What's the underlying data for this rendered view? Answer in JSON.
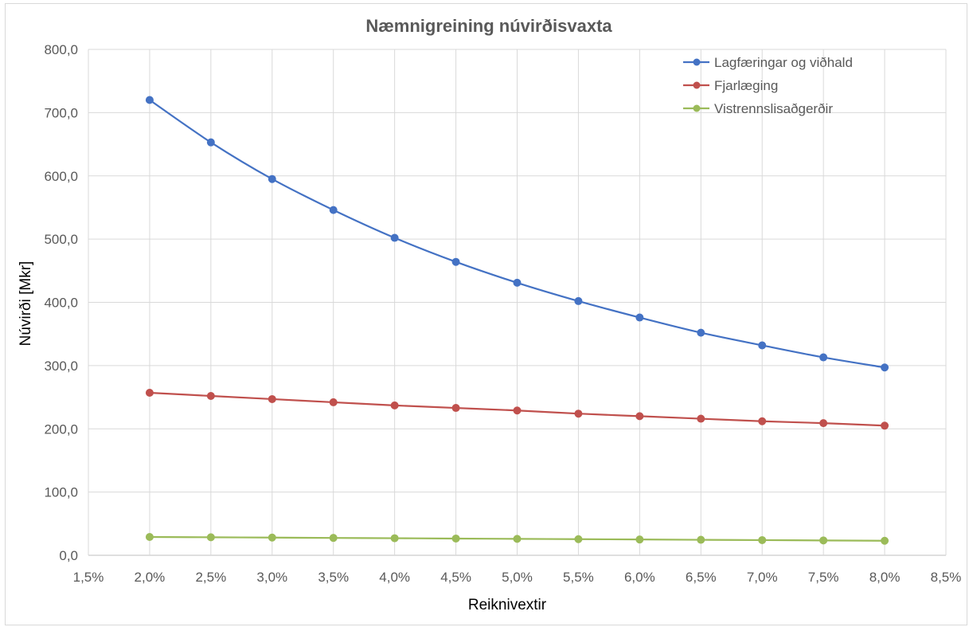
{
  "chart_data": {
    "type": "line",
    "title": "Næmnigreining núvirðisvaxta",
    "xlabel": "Reiknivextir",
    "ylabel": "Núvirði [Mkr]",
    "xlim": [
      1.5,
      8.5
    ],
    "ylim": [
      0,
      800
    ],
    "x_ticks": [
      1.5,
      2.0,
      2.5,
      3.0,
      3.5,
      4.0,
      4.5,
      5.0,
      5.5,
      6.0,
      6.5,
      7.0,
      7.5,
      8.0,
      8.5
    ],
    "x_tick_labels": [
      "1,5%",
      "2,0%",
      "2,5%",
      "3,0%",
      "3,5%",
      "4,0%",
      "4,5%",
      "5,0%",
      "5,5%",
      "6,0%",
      "6,5%",
      "7,0%",
      "7,5%",
      "8,0%",
      "8,5%"
    ],
    "y_ticks": [
      0,
      100,
      200,
      300,
      400,
      500,
      600,
      700,
      800
    ],
    "y_tick_labels": [
      "0,0",
      "100,0",
      "200,0",
      "300,0",
      "400,0",
      "500,0",
      "600,0",
      "700,0",
      "800,0"
    ],
    "grid": true,
    "legend_position": "top-right",
    "x": [
      2.0,
      2.5,
      3.0,
      3.5,
      4.0,
      4.5,
      5.0,
      5.5,
      6.0,
      6.5,
      7.0,
      7.5,
      8.0
    ],
    "series": [
      {
        "name": "Lagfæringar og viðhald",
        "color": "#4472C4",
        "values": [
          720,
          653,
          595,
          546,
          502,
          464,
          431,
          402,
          376,
          352,
          332,
          313,
          297
        ]
      },
      {
        "name": "Fjarlæging",
        "color": "#C0504D",
        "values": [
          257,
          252,
          247,
          242,
          237,
          233,
          229,
          224,
          220,
          216,
          212,
          209,
          205
        ]
      },
      {
        "name": "Vistrennslisaðgerðir",
        "color": "#9BBB59",
        "values": [
          29,
          28.5,
          28,
          27.5,
          27,
          26.5,
          26,
          25.5,
          25,
          24.5,
          24,
          23.5,
          23
        ]
      }
    ]
  }
}
